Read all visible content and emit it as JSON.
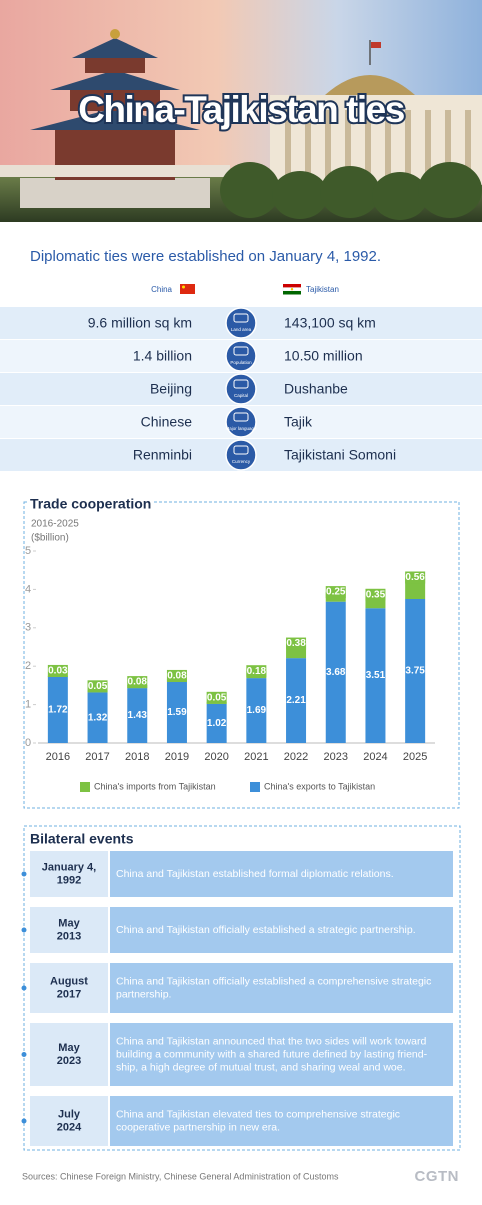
{
  "header": {
    "title": "China-Tajikistan ties"
  },
  "intro": "Diplomatic ties were established on January 4, 1992.",
  "comparison": {
    "left": "China",
    "right": "Tajikistan",
    "rows": [
      {
        "left": "9.6 million sq km",
        "icon": "Land area",
        "right": "143,100 sq km"
      },
      {
        "left": "1.4 billion",
        "icon": "Population",
        "right": "10.50 million"
      },
      {
        "left": "Beijing",
        "icon": "Capital",
        "right": "Dushanbe"
      },
      {
        "left": "Chinese",
        "icon": "Major language",
        "right": "Tajik"
      },
      {
        "left": "Renminbi",
        "icon": "Currency",
        "right": "Tajikistani Somoni"
      }
    ]
  },
  "chart_data": {
    "type": "bar",
    "stacked": true,
    "title": "Trade cooperation",
    "subtitle": "2016-2025",
    "y_label": "($billion)",
    "categories": [
      "2016",
      "2017",
      "2018",
      "2019",
      "2020",
      "2021",
      "2022",
      "2023",
      "2024",
      "2025"
    ],
    "series": [
      {
        "name": "China's exports to Tajikistan",
        "color": "#3d8fd9",
        "values": [
          1.72,
          1.32,
          1.43,
          1.59,
          1.02,
          1.69,
          2.21,
          3.68,
          3.51,
          3.75
        ]
      },
      {
        "name": "China's imports from Tajikistan",
        "color": "#7dc243",
        "values": [
          0.03,
          0.05,
          0.08,
          0.08,
          0.05,
          0.18,
          0.38,
          0.25,
          0.35,
          0.56
        ]
      }
    ],
    "ylim": [
      0,
      5
    ],
    "yticks": [
      0,
      1,
      2,
      3,
      4,
      5
    ],
    "grid": false
  },
  "events": {
    "title": "Bilateral events",
    "items": [
      {
        "date": [
          "January 4,",
          "1992"
        ],
        "text": [
          "China and Tajikistan established formal diplomatic relations."
        ]
      },
      {
        "date": [
          "May",
          "2013"
        ],
        "text": [
          "China and Tajikistan officially established a strategic partnership."
        ]
      },
      {
        "date": [
          "August",
          "2017"
        ],
        "text": [
          "China and Tajikistan officially established a comprehensive strategic",
          "partnership."
        ]
      },
      {
        "date": [
          "May",
          "2023"
        ],
        "text": [
          "China and Tajikistan announced that the two sides will work toward",
          "building a community with a shared future defined by lasting friend-",
          "ship, a high degree of mutual trust, and sharing weal and woe."
        ]
      },
      {
        "date": [
          "July",
          "2024"
        ],
        "text": [
          "China and Tajikistan elevated ties to comprehensive strategic",
          "cooperative partnership in new era."
        ]
      }
    ]
  },
  "footer": {
    "sources": "Sources: Chinese Foreign Ministry, Chinese General Administration of Customs",
    "logo": "CGTN"
  }
}
